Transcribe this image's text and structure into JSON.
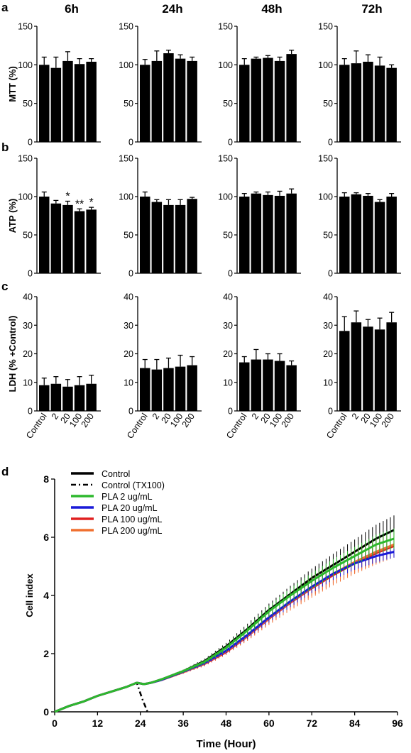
{
  "figure": {
    "panel_letters": [
      "a",
      "b",
      "c",
      "d"
    ],
    "column_titles": [
      "6h",
      "24h",
      "48h",
      "72h"
    ]
  },
  "chart_data": [
    {
      "panel": "a",
      "type": "bar",
      "ylabel": "MTT (%)",
      "ylim": [
        0,
        150
      ],
      "yticks": [
        0,
        50,
        100,
        150
      ],
      "categories": [
        "Control",
        "2",
        "20",
        "100",
        "200"
      ],
      "groups": [
        {
          "title": "6h",
          "values": [
            100,
            96,
            105,
            101,
            104
          ],
          "errors": [
            10,
            14,
            12,
            7,
            4
          ]
        },
        {
          "title": "24h",
          "values": [
            100,
            105,
            115,
            108,
            105
          ],
          "errors": [
            7,
            13,
            4,
            5,
            5
          ]
        },
        {
          "title": "48h",
          "values": [
            100,
            108,
            109,
            105,
            114
          ],
          "errors": [
            8,
            2,
            3,
            5,
            5
          ]
        },
        {
          "title": "72h",
          "values": [
            100,
            102,
            104,
            99,
            96
          ],
          "errors": [
            8,
            16,
            9,
            11,
            4
          ]
        }
      ]
    },
    {
      "panel": "b",
      "type": "bar",
      "ylabel": "ATP (%)",
      "ylim": [
        0,
        150
      ],
      "yticks": [
        0,
        50,
        100,
        150
      ],
      "categories": [
        "Control",
        "2",
        "20",
        "100",
        "200"
      ],
      "groups": [
        {
          "title": "6h",
          "values": [
            100,
            91,
            89,
            81,
            83
          ],
          "errors": [
            6,
            4,
            5,
            3,
            3
          ],
          "annotations": [
            "",
            "",
            "*",
            "**",
            "*"
          ]
        },
        {
          "title": "24h",
          "values": [
            100,
            93,
            89,
            89,
            97
          ],
          "errors": [
            6,
            3,
            7,
            7,
            2
          ]
        },
        {
          "title": "48h",
          "values": [
            100,
            104,
            102,
            101,
            104
          ],
          "errors": [
            4,
            2,
            4,
            6,
            6
          ]
        },
        {
          "title": "72h",
          "values": [
            100,
            103,
            101,
            93,
            100
          ],
          "errors": [
            5,
            2,
            3,
            3,
            4
          ]
        }
      ]
    },
    {
      "panel": "c",
      "type": "bar",
      "ylabel": "LDH (% +Control)",
      "ylim": [
        0,
        40
      ],
      "yticks": [
        0,
        10,
        20,
        30,
        40
      ],
      "categories": [
        "Control",
        "2",
        "20",
        "100",
        "200"
      ],
      "groups": [
        {
          "title": "6h",
          "values": [
            9,
            9.5,
            8.5,
            9,
            9.5
          ],
          "errors": [
            2.5,
            2.5,
            2.5,
            3,
            3
          ]
        },
        {
          "title": "24h",
          "values": [
            15,
            14.5,
            15,
            15.5,
            16
          ],
          "errors": [
            3,
            3.5,
            3.5,
            4,
            3
          ]
        },
        {
          "title": "48h",
          "values": [
            17,
            18,
            18,
            17.5,
            16
          ],
          "errors": [
            2,
            3.5,
            2,
            2.5,
            1.5
          ]
        },
        {
          "title": "72h",
          "values": [
            28,
            31,
            29.5,
            28.5,
            31
          ],
          "errors": [
            5,
            4,
            2.5,
            4,
            3.5
          ]
        }
      ]
    },
    {
      "panel": "d",
      "type": "line",
      "xlabel": "Time (Hour)",
      "ylabel": "Cell index",
      "xlim": [
        0,
        96
      ],
      "ylim": [
        0,
        8
      ],
      "xticks": [
        0,
        12,
        24,
        36,
        48,
        60,
        72,
        84,
        96
      ],
      "yticks": [
        0,
        2,
        4,
        6,
        8
      ],
      "series": [
        {
          "name": "Control",
          "color": "#000000",
          "style": "solid",
          "x": [
            0,
            4,
            8,
            12,
            16,
            20,
            23,
            25,
            27,
            30,
            36,
            42,
            48,
            54,
            60,
            66,
            72,
            78,
            84,
            90,
            95
          ],
          "y": [
            0,
            0.2,
            0.35,
            0.55,
            0.7,
            0.85,
            1.0,
            0.95,
            1.0,
            1.12,
            1.4,
            1.75,
            2.25,
            2.85,
            3.5,
            4.05,
            4.6,
            5.05,
            5.5,
            5.95,
            6.25
          ],
          "errors": [
            0,
            0,
            0,
            0,
            0,
            0,
            0,
            0,
            0,
            0.03,
            0.05,
            0.08,
            0.12,
            0.18,
            0.22,
            0.28,
            0.32,
            0.38,
            0.42,
            0.48,
            0.5
          ]
        },
        {
          "name": "Control (TX100)",
          "color": "#000000",
          "style": "dashdot",
          "x": [
            0,
            4,
            8,
            12,
            16,
            20,
            23,
            24.5,
            26
          ],
          "y": [
            0,
            0.2,
            0.35,
            0.55,
            0.7,
            0.85,
            1.0,
            0.45,
            0
          ]
        },
        {
          "name": "PLA 2 ug/mL",
          "color": "#2db82d",
          "style": "solid",
          "x": [
            0,
            4,
            8,
            12,
            16,
            20,
            23,
            25,
            27,
            30,
            36,
            42,
            48,
            54,
            60,
            66,
            72,
            78,
            84,
            90,
            95
          ],
          "y": [
            0,
            0.2,
            0.35,
            0.55,
            0.7,
            0.85,
            1.0,
            0.95,
            1.0,
            1.12,
            1.4,
            1.72,
            2.2,
            2.8,
            3.45,
            4.0,
            4.5,
            4.95,
            5.35,
            5.75,
            5.95
          ],
          "errors": [
            0,
            0,
            0,
            0,
            0,
            0,
            0,
            0,
            0,
            0.03,
            0.05,
            0.08,
            0.12,
            0.16,
            0.2,
            0.25,
            0.28,
            0.3,
            0.32,
            0.34,
            0.35
          ]
        },
        {
          "name": "PLA 20 ug/mL",
          "color": "#1a1ad8",
          "style": "solid",
          "x": [
            0,
            4,
            8,
            12,
            16,
            20,
            23,
            25,
            27,
            30,
            36,
            42,
            48,
            54,
            60,
            66,
            72,
            78,
            84,
            90,
            95
          ],
          "y": [
            0,
            0.2,
            0.35,
            0.55,
            0.7,
            0.85,
            1.0,
            0.95,
            1.0,
            1.1,
            1.38,
            1.68,
            2.1,
            2.65,
            3.25,
            3.8,
            4.3,
            4.75,
            5.1,
            5.35,
            5.5
          ],
          "errors": [
            0,
            0,
            0,
            0,
            0,
            0,
            0,
            0,
            0,
            0.03,
            0.05,
            0.08,
            0.1,
            0.14,
            0.18,
            0.2,
            0.22,
            0.22,
            0.22,
            0.22,
            0.2
          ]
        },
        {
          "name": "PLA 100 ug/mL",
          "color": "#e02020",
          "style": "solid",
          "x": [
            0,
            4,
            8,
            12,
            16,
            20,
            23,
            25,
            27,
            30,
            36,
            42,
            48,
            54,
            60,
            66,
            72,
            78,
            84,
            90,
            95
          ],
          "y": [
            0,
            0.2,
            0.35,
            0.55,
            0.7,
            0.85,
            1.0,
            0.95,
            1.0,
            1.1,
            1.36,
            1.65,
            2.05,
            2.6,
            3.2,
            3.75,
            4.25,
            4.7,
            5.1,
            5.45,
            5.7
          ],
          "errors": [
            0,
            0,
            0,
            0,
            0,
            0,
            0,
            0,
            0,
            0.03,
            0.05,
            0.08,
            0.1,
            0.14,
            0.18,
            0.22,
            0.26,
            0.3,
            0.32,
            0.34,
            0.35
          ]
        },
        {
          "name": "PLA 200 ug/mL",
          "color": "#f07030",
          "style": "solid",
          "x": [
            0,
            4,
            8,
            12,
            16,
            20,
            23,
            25,
            27,
            30,
            36,
            42,
            48,
            54,
            60,
            66,
            72,
            78,
            84,
            90,
            95
          ],
          "y": [
            0,
            0.2,
            0.35,
            0.55,
            0.7,
            0.85,
            1.0,
            0.95,
            1.0,
            1.1,
            1.36,
            1.66,
            2.08,
            2.62,
            3.22,
            3.78,
            4.28,
            4.75,
            5.15,
            5.5,
            5.75
          ],
          "errors": [
            0,
            0,
            0,
            0,
            0,
            0,
            0,
            0,
            0,
            0.03,
            0.05,
            0.08,
            0.12,
            0.18,
            0.24,
            0.3,
            0.36,
            0.4,
            0.42,
            0.44,
            0.45
          ]
        }
      ]
    }
  ]
}
